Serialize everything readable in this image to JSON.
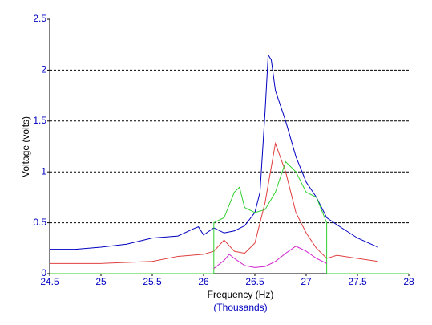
{
  "chart_data": {
    "type": "line",
    "x_label": "Frequency (Hz)",
    "x_sublabel": "(Thousands)",
    "y_label": "Voltage (volts)",
    "xlim": [
      24.5,
      28
    ],
    "xticks": [
      24.5,
      25,
      25.5,
      26,
      26.5,
      27,
      27.5,
      28
    ],
    "ylim": [
      0,
      2.5
    ],
    "yticks": [
      0,
      0.5,
      1,
      1.5,
      2,
      2.5
    ],
    "grid": true,
    "series": [
      {
        "color": "#0000c0",
        "x": [
          24.5,
          24.75,
          25,
          25.25,
          25.5,
          25.75,
          25.9,
          25.95,
          26.0,
          26.1,
          26.2,
          26.3,
          26.4,
          26.5,
          26.55,
          26.6,
          26.63,
          26.66,
          26.7,
          26.8,
          26.9,
          27.0,
          27.1,
          27.2,
          27.3,
          27.5,
          27.7
        ],
        "values": [
          0.24,
          0.24,
          0.26,
          0.29,
          0.35,
          0.37,
          0.44,
          0.46,
          0.38,
          0.45,
          0.4,
          0.42,
          0.47,
          0.6,
          0.8,
          1.6,
          2.15,
          2.1,
          1.8,
          1.5,
          1.15,
          0.9,
          0.75,
          0.55,
          0.48,
          0.35,
          0.26
        ]
      },
      {
        "color": "#e04040",
        "x": [
          24.5,
          25,
          25.5,
          25.75,
          26.0,
          26.1,
          26.2,
          26.3,
          26.4,
          26.5,
          26.6,
          26.7,
          26.8,
          26.9,
          27.0,
          27.1,
          27.2,
          27.3,
          27.5,
          27.7
        ],
        "values": [
          0.1,
          0.1,
          0.12,
          0.17,
          0.19,
          0.22,
          0.33,
          0.22,
          0.2,
          0.3,
          0.7,
          1.28,
          1.0,
          0.6,
          0.4,
          0.25,
          0.15,
          0.18,
          0.15,
          0.12
        ]
      },
      {
        "color": "#30d030",
        "x": [
          24.5,
          26.1,
          26.1,
          26.2,
          26.3,
          26.35,
          26.4,
          26.5,
          26.6,
          26.7,
          26.8,
          26.9,
          27.0,
          27.1,
          27.2,
          27.2,
          28
        ],
        "values": [
          0,
          0,
          0.5,
          0.55,
          0.8,
          0.85,
          0.65,
          0.6,
          0.63,
          0.8,
          1.1,
          1.0,
          0.8,
          0.75,
          0.5,
          0,
          0
        ]
      },
      {
        "color": "#d020d0",
        "x": [
          26.1,
          26.2,
          26.25,
          26.3,
          26.4,
          26.5,
          26.6,
          26.7,
          26.8,
          26.9,
          27.0,
          27.1,
          27.2
        ],
        "values": [
          0.05,
          0.13,
          0.19,
          0.15,
          0.08,
          0.06,
          0.07,
          0.12,
          0.2,
          0.27,
          0.22,
          0.15,
          0.1
        ]
      }
    ]
  }
}
